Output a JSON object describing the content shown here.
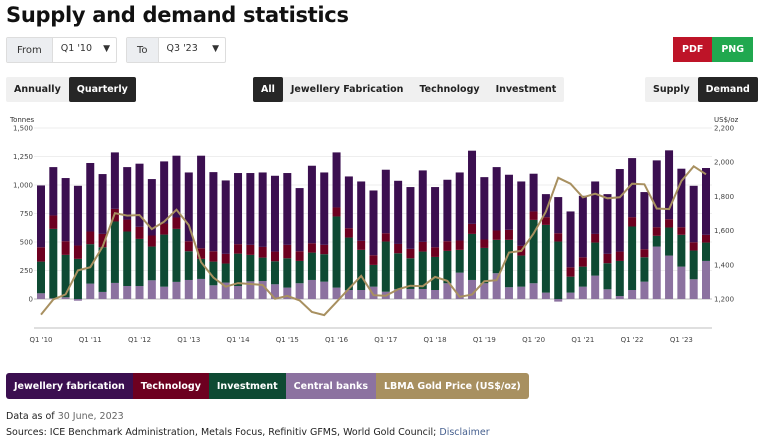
{
  "title": "Supply and demand statistics",
  "range": {
    "from_label": "From",
    "from_value": "Q1 '10",
    "to_label": "To",
    "to_value": "Q3 '23"
  },
  "export": {
    "pdf": "PDF",
    "png": "PNG",
    "pdf_color": "#be1428",
    "png_color": "#20a84f"
  },
  "period_toggle": {
    "options": [
      "Annually",
      "Quarterly"
    ],
    "selected": "Quarterly"
  },
  "category_filter": {
    "options": [
      "All",
      "Jewellery Fabrication",
      "Technology",
      "Investment"
    ],
    "selected": "All"
  },
  "side_toggle": {
    "options": [
      "Supply",
      "Demand"
    ],
    "selected": "Demand"
  },
  "legend": [
    {
      "label": "Jewellery fabrication",
      "color": "#3b0f50"
    },
    {
      "label": "Technology",
      "color": "#6d0020"
    },
    {
      "label": "Investment",
      "color": "#0e4a33"
    },
    {
      "label": "Central banks",
      "color": "#8c72a0"
    },
    {
      "label": "LBMA Gold Price (US$/oz)",
      "color": "#a89060"
    }
  ],
  "footer": {
    "data_as_of_label": "Data as of",
    "data_as_of_date": "30 June, 2023",
    "sources": "Sources: ICE Benchmark Administration, Metals Focus, Refinitiv GFMS, World Gold Council;",
    "disclaimer": "Disclaimer"
  },
  "chart_data": {
    "type": "bar",
    "stacked": true,
    "ylabel": "Tonnes",
    "y2label": "US$/oz",
    "ylim": [
      -250,
      1500
    ],
    "yticks": [
      0,
      250,
      500,
      750,
      1000,
      1250,
      1500
    ],
    "y2ticks": [
      1200,
      1400,
      1600,
      1800,
      2000,
      2200
    ],
    "xtick_labels": [
      "Q1 '10",
      "Q1 '11",
      "Q1 '12",
      "Q1 '13",
      "Q1 '14",
      "Q1 '15",
      "Q1 '16",
      "Q1 '17",
      "Q1 '18",
      "Q1 '19",
      "Q1 '20",
      "Q1 '21",
      "Q1 '22",
      "Q1 '23"
    ],
    "grid": true,
    "categories": [
      "Q1'10",
      "Q2'10",
      "Q3'10",
      "Q4'10",
      "Q1'11",
      "Q2'11",
      "Q3'11",
      "Q4'11",
      "Q1'12",
      "Q2'12",
      "Q3'12",
      "Q4'12",
      "Q1'13",
      "Q2'13",
      "Q3'13",
      "Q4'13",
      "Q1'14",
      "Q2'14",
      "Q3'14",
      "Q4'14",
      "Q1'15",
      "Q2'15",
      "Q3'15",
      "Q4'15",
      "Q1'16",
      "Q2'16",
      "Q3'16",
      "Q4'16",
      "Q1'17",
      "Q2'17",
      "Q3'17",
      "Q4'17",
      "Q1'18",
      "Q2'18",
      "Q3'18",
      "Q4'18",
      "Q1'19",
      "Q2'19",
      "Q3'19",
      "Q4'19",
      "Q1'20",
      "Q2'20",
      "Q3'20",
      "Q4'20",
      "Q1'21",
      "Q2'21",
      "Q3'21",
      "Q4'21",
      "Q1'22",
      "Q2'22",
      "Q3'22",
      "Q4'22",
      "Q1'23",
      "Q2'23",
      "Q3'23"
    ],
    "series": [
      {
        "name": "Central banks",
        "color": "#8c72a0",
        "values": [
          50,
          6,
          15,
          -15,
          135,
          62,
          141,
          114,
          114,
          164,
          108,
          150,
          167,
          176,
          120,
          144,
          114,
          155,
          158,
          129,
          100,
          138,
          167,
          152,
          100,
          79,
          79,
          108,
          64,
          88,
          88,
          88,
          79,
          138,
          231,
          167,
          138,
          226,
          103,
          108,
          138,
          56,
          -23,
          56,
          108,
          205,
          85,
          26,
          79,
          152,
          460,
          381,
          284,
          173,
          334
        ]
      },
      {
        "name": "Investment",
        "color": "#0e4a33",
        "values": [
          278,
          609,
          372,
          352,
          346,
          392,
          539,
          478,
          413,
          296,
          457,
          465,
          252,
          176,
          208,
          167,
          284,
          232,
          205,
          202,
          257,
          196,
          240,
          241,
          624,
          460,
          352,
          191,
          440,
          313,
          269,
          328,
          290,
          284,
          200,
          404,
          310,
          293,
          416,
          273,
          556,
          594,
          504,
          140,
          176,
          290,
          229,
          308,
          557,
          214,
          94,
          246,
          279,
          252,
          161
        ]
      },
      {
        "name": "Technology",
        "color": "#6d0020",
        "values": [
          126,
          118,
          120,
          117,
          111,
          117,
          111,
          105,
          106,
          97,
          97,
          100,
          88,
          93,
          91,
          85,
          83,
          88,
          94,
          85,
          118,
          85,
          82,
          82,
          79,
          82,
          79,
          85,
          73,
          82,
          83,
          85,
          85,
          85,
          82,
          88,
          74,
          82,
          88,
          85,
          74,
          68,
          73,
          82,
          82,
          76,
          82,
          82,
          82,
          71,
          76,
          73,
          67,
          73,
          68
        ]
      },
      {
        "name": "Jewellery fabrication",
        "color": "#3b0f50",
        "values": [
          542,
          424,
          554,
          524,
          601,
          525,
          495,
          460,
          554,
          495,
          545,
          542,
          603,
          812,
          694,
          644,
          624,
          630,
          653,
          665,
          630,
          554,
          680,
          635,
          483,
          454,
          521,
          568,
          557,
          554,
          542,
          627,
          528,
          539,
          597,
          642,
          547,
          556,
          483,
          565,
          331,
          202,
          317,
          490,
          539,
          460,
          524,
          724,
          518,
          501,
          586,
          604,
          513,
          495,
          586
        ]
      }
    ],
    "line": {
      "name": "LBMA Gold Price (US$/oz)",
      "axis": "right",
      "color": "#a89060",
      "values": [
        1109,
        1197,
        1227,
        1367,
        1386,
        1506,
        1702,
        1688,
        1691,
        1609,
        1652,
        1722,
        1632,
        1415,
        1326,
        1272,
        1293,
        1288,
        1282,
        1201,
        1218,
        1192,
        1124,
        1106,
        1183,
        1260,
        1335,
        1222,
        1219,
        1257,
        1278,
        1275,
        1329,
        1306,
        1213,
        1226,
        1304,
        1310,
        1472,
        1481,
        1583,
        1711,
        1909,
        1874,
        1794,
        1816,
        1789,
        1795,
        1874,
        1871,
        1729,
        1726,
        1890,
        1976,
        1929
      ]
    }
  }
}
